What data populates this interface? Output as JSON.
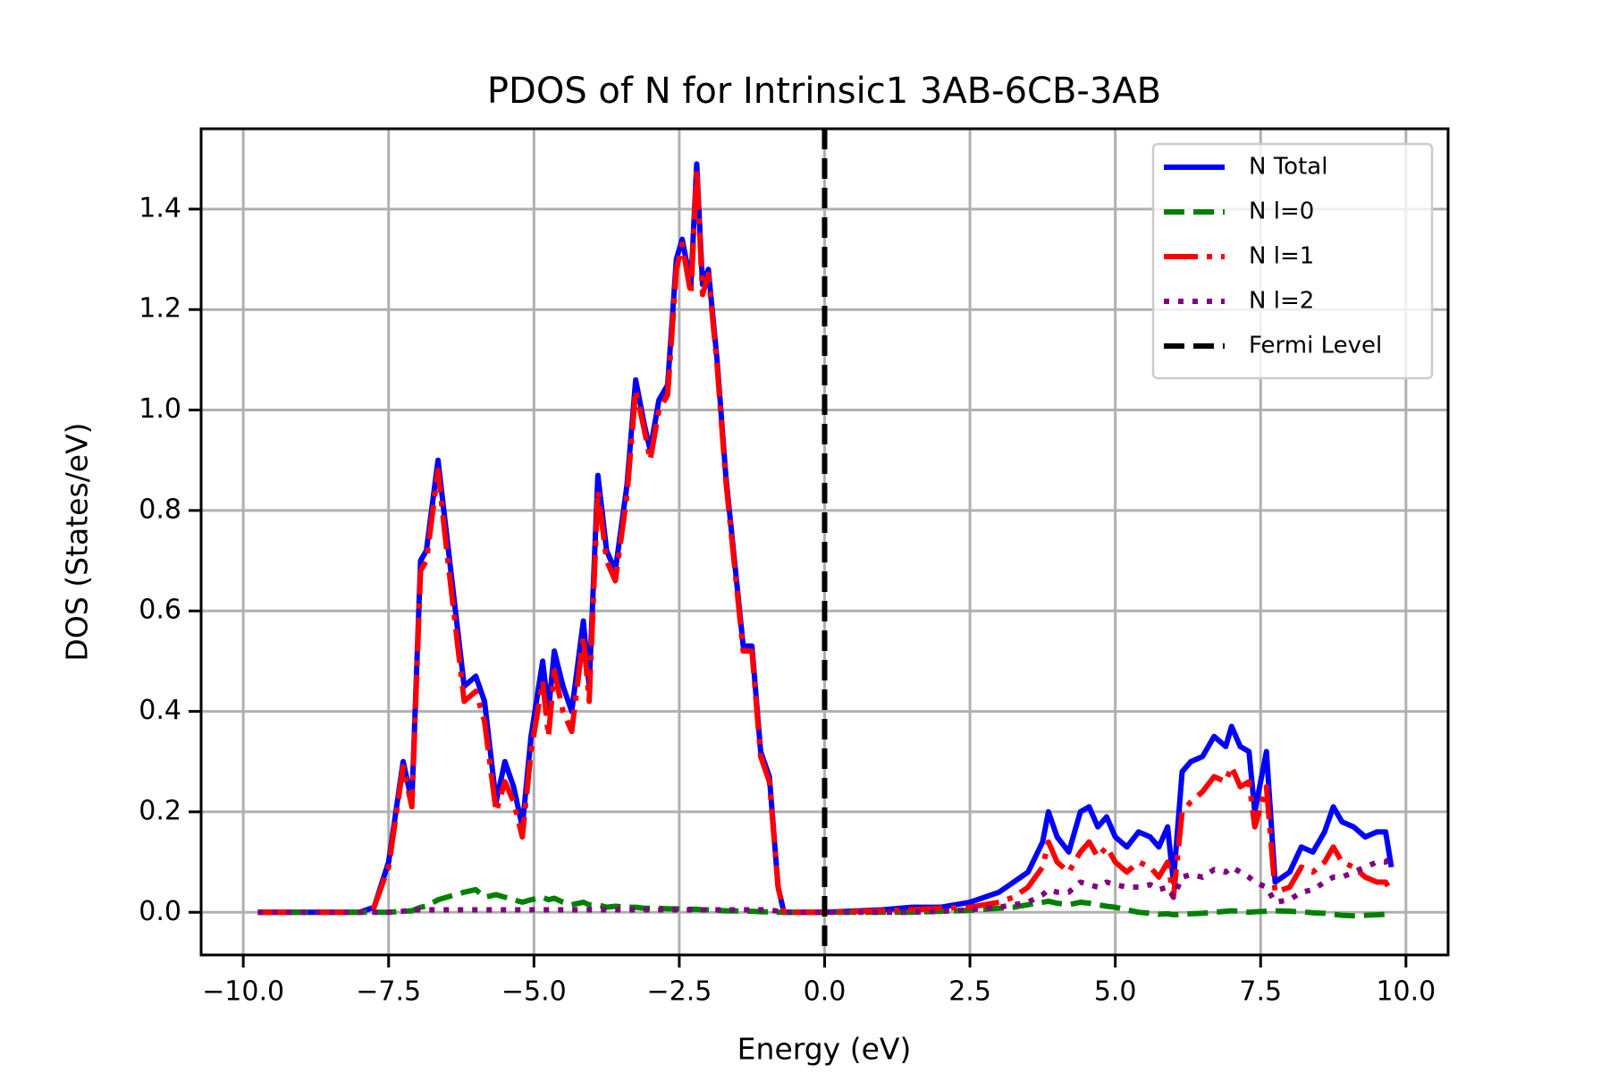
{
  "chart_data": {
    "type": "line",
    "title": "PDOS of N for Intrinsic1 3AB-6CB-3AB",
    "xlabel": "Energy (eV)",
    "ylabel": "DOS (States/eV)",
    "x": [
      -9.75,
      -8.0,
      -7.75,
      -7.5,
      -7.25,
      -7.1,
      -6.95,
      -6.85,
      -6.65,
      -6.5,
      -6.35,
      -6.2,
      -6.0,
      -5.85,
      -5.65,
      -5.5,
      -5.35,
      -5.2,
      -5.05,
      -4.85,
      -4.75,
      -4.65,
      -4.5,
      -4.35,
      -4.15,
      -4.05,
      -3.9,
      -3.75,
      -3.6,
      -3.4,
      -3.25,
      -3.1,
      -3.0,
      -2.85,
      -2.7,
      -2.55,
      -2.45,
      -2.3,
      -2.2,
      -2.1,
      -2.0,
      -1.85,
      -1.7,
      -1.55,
      -1.4,
      -1.25,
      -1.1,
      -0.95,
      -0.8,
      -0.7,
      0.0,
      1.0,
      1.5,
      2.0,
      2.5,
      2.75,
      3.0,
      3.25,
      3.5,
      3.75,
      3.85,
      4.0,
      4.2,
      4.4,
      4.55,
      4.7,
      4.85,
      5.0,
      5.2,
      5.4,
      5.6,
      5.75,
      5.9,
      6.0,
      6.15,
      6.3,
      6.5,
      6.7,
      6.9,
      7.0,
      7.15,
      7.3,
      7.4,
      7.6,
      7.75,
      8.0,
      8.2,
      8.4,
      8.6,
      8.75,
      8.9,
      9.1,
      9.3,
      9.5,
      9.65,
      9.75
    ],
    "series": [
      {
        "name": "N Total",
        "color": "blue",
        "style": "solid",
        "values": [
          0,
          0,
          0.01,
          0.1,
          0.3,
          0.22,
          0.7,
          0.72,
          0.9,
          0.75,
          0.6,
          0.45,
          0.47,
          0.42,
          0.22,
          0.3,
          0.25,
          0.17,
          0.35,
          0.5,
          0.4,
          0.52,
          0.45,
          0.4,
          0.58,
          0.45,
          0.87,
          0.72,
          0.68,
          0.85,
          1.06,
          0.97,
          0.92,
          1.02,
          1.05,
          1.3,
          1.34,
          1.25,
          1.49,
          1.25,
          1.28,
          1.1,
          0.87,
          0.7,
          0.53,
          0.53,
          0.32,
          0.27,
          0.05,
          0,
          0,
          0.005,
          0.01,
          0.01,
          0.02,
          0.03,
          0.04,
          0.06,
          0.08,
          0.14,
          0.2,
          0.15,
          0.12,
          0.2,
          0.21,
          0.17,
          0.19,
          0.15,
          0.13,
          0.16,
          0.15,
          0.13,
          0.17,
          0.06,
          0.28,
          0.3,
          0.31,
          0.35,
          0.33,
          0.37,
          0.33,
          0.32,
          0.2,
          0.32,
          0.06,
          0.08,
          0.13,
          0.12,
          0.16,
          0.21,
          0.18,
          0.17,
          0.15,
          0.16,
          0.16,
          0.09
        ]
      },
      {
        "name": "N l=0",
        "color": "green",
        "style": "dashed",
        "values": [
          0,
          0,
          0,
          0,
          0.002,
          0.003,
          0.01,
          0.012,
          0.025,
          0.03,
          0.035,
          0.04,
          0.045,
          0.03,
          0.035,
          0.03,
          0.025,
          0.02,
          0.025,
          0.03,
          0.025,
          0.028,
          0.02,
          0.015,
          0.02,
          0.015,
          0.015,
          0.01,
          0.012,
          0.01,
          0.01,
          0.008,
          0.008,
          0.008,
          0.007,
          0.007,
          0.006,
          0.006,
          0.006,
          0.005,
          0.005,
          0.004,
          0.003,
          0.003,
          0.002,
          0.002,
          0.001,
          0.001,
          0,
          0,
          0,
          0,
          0,
          0.002,
          0.004,
          0.006,
          0.008,
          0.01,
          0.015,
          0.02,
          0.022,
          0.018,
          0.015,
          0.02,
          0.018,
          0.015,
          0.012,
          0.01,
          0.005,
          0,
          -0.002,
          -0.004,
          -0.003,
          -0.005,
          -0.004,
          -0.003,
          -0.002,
          0,
          0.002,
          0.003,
          0.002,
          0,
          0.001,
          0.002,
          0.003,
          0.002,
          0.001,
          -0.001,
          -0.002,
          -0.004,
          -0.006,
          -0.007,
          -0.006,
          -0.005,
          -0.004,
          -0.004
        ]
      },
      {
        "name": "N l=1",
        "color": "red",
        "style": "dashdot",
        "values": [
          0,
          0,
          0.01,
          0.09,
          0.29,
          0.21,
          0.68,
          0.7,
          0.88,
          0.72,
          0.57,
          0.42,
          0.44,
          0.38,
          0.2,
          0.26,
          0.22,
          0.15,
          0.32,
          0.46,
          0.35,
          0.48,
          0.4,
          0.36,
          0.55,
          0.42,
          0.84,
          0.7,
          0.66,
          0.83,
          1.04,
          0.96,
          0.9,
          1.0,
          1.03,
          1.28,
          1.33,
          1.23,
          1.48,
          1.23,
          1.27,
          1.09,
          0.86,
          0.69,
          0.52,
          0.52,
          0.31,
          0.26,
          0.05,
          0,
          0,
          0.003,
          0.005,
          0.008,
          0.01,
          0.015,
          0.02,
          0.03,
          0.05,
          0.09,
          0.14,
          0.1,
          0.08,
          0.12,
          0.14,
          0.11,
          0.13,
          0.1,
          0.08,
          0.1,
          0.09,
          0.07,
          0.1,
          0.03,
          0.2,
          0.22,
          0.24,
          0.27,
          0.26,
          0.29,
          0.25,
          0.26,
          0.17,
          0.25,
          0.04,
          0.05,
          0.09,
          0.08,
          0.1,
          0.13,
          0.1,
          0.09,
          0.07,
          0.06,
          0.06,
          0.04
        ]
      },
      {
        "name": "N l=2",
        "color": "purple",
        "style": "dotted",
        "values": [
          0,
          0,
          0,
          0,
          0.002,
          0.005,
          0.005,
          0.005,
          0.005,
          0.005,
          0.005,
          0.005,
          0.005,
          0.005,
          0.005,
          0.005,
          0.005,
          0.005,
          0.005,
          0.005,
          0.005,
          0.005,
          0.005,
          0.005,
          0.005,
          0.005,
          0.005,
          0.005,
          0.005,
          0.005,
          0.005,
          0.005,
          0.005,
          0.005,
          0.005,
          0.005,
          0.005,
          0.005,
          0.005,
          0.005,
          0.005,
          0.005,
          0.005,
          0.005,
          0.005,
          0.005,
          0.005,
          0.005,
          0.002,
          0,
          0,
          0,
          0,
          0.002,
          0.005,
          0.008,
          0.01,
          0.015,
          0.02,
          0.035,
          0.045,
          0.04,
          0.04,
          0.06,
          0.055,
          0.05,
          0.06,
          0.055,
          0.05,
          0.05,
          0.055,
          0.045,
          0.05,
          0.03,
          0.07,
          0.075,
          0.07,
          0.085,
          0.08,
          0.09,
          0.08,
          0.07,
          0.06,
          0.05,
          0.02,
          0.025,
          0.04,
          0.045,
          0.06,
          0.07,
          0.07,
          0.08,
          0.09,
          0.1,
          0.1,
          0.11
        ]
      }
    ],
    "vlines": [
      {
        "name": "Fermi Level",
        "x": 0,
        "color": "black",
        "style": "dashed"
      }
    ],
    "xlim": [
      -10.725,
      10.725
    ],
    "ylim": [
      -0.085,
      1.56
    ],
    "xticks": [
      {
        "value": -10,
        "label": "−10.0"
      },
      {
        "value": -7.5,
        "label": "−7.5"
      },
      {
        "value": -5,
        "label": "−5.0"
      },
      {
        "value": -2.5,
        "label": "−2.5"
      },
      {
        "value": 0,
        "label": "0.0"
      },
      2.5,
      {
        "value": 5,
        "label": "5.0"
      },
      7.5,
      {
        "value": 10,
        "label": "10.0"
      }
    ],
    "yticks": [
      {
        "value": 0,
        "label": "0.0"
      },
      0.2,
      0.4,
      0.6,
      0.8,
      {
        "value": 1,
        "label": "1.0"
      },
      1.2,
      1.4
    ],
    "grid": true,
    "legend": "upper right"
  }
}
